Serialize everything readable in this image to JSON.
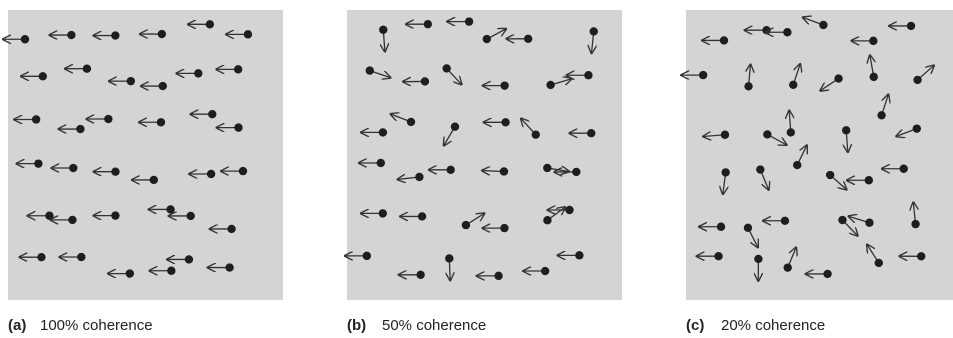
{
  "panels": [
    {
      "label": "(a)",
      "caption": "100% coherence"
    },
    {
      "label": "(b)",
      "caption": "50% coherence"
    },
    {
      "label": "(c)",
      "caption": "20% coherence"
    }
  ]
}
